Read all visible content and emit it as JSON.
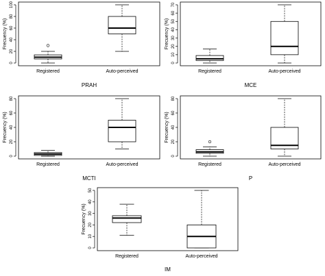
{
  "chart_data": [
    {
      "type": "box",
      "title": "PRAH",
      "ylabel": "Frecuency (%)",
      "ylim": [
        0,
        100
      ],
      "yticks": [
        0,
        20,
        40,
        60,
        80,
        100
      ],
      "categories": [
        "Registered",
        "Auto-perceived"
      ],
      "boxes": [
        {
          "min": 0,
          "q1": 7,
          "median": 10,
          "q3": 14,
          "max": 20,
          "outliers": [
            30
          ]
        },
        {
          "min": 20,
          "q1": 50,
          "median": 60,
          "q3": 80,
          "max": 100,
          "outliers": []
        }
      ]
    },
    {
      "type": "box",
      "title": "MCE",
      "ylabel": "Frecuency (%)",
      "ylim": [
        0,
        70
      ],
      "yticks": [
        0,
        10,
        20,
        30,
        40,
        50,
        60,
        70
      ],
      "categories": [
        "Registered",
        "Auto-perceived"
      ],
      "boxes": [
        {
          "min": 0,
          "q1": 3,
          "median": 5,
          "q3": 9,
          "max": 17,
          "outliers": []
        },
        {
          "min": 0,
          "q1": 10,
          "median": 20,
          "q3": 50,
          "max": 70,
          "outliers": []
        }
      ]
    },
    {
      "type": "box",
      "title": "MCTI",
      "ylabel": "Frecuency (%)",
      "ylim": [
        0,
        80
      ],
      "yticks": [
        0,
        20,
        40,
        60,
        80
      ],
      "categories": [
        "Registered",
        "Auto-perceived"
      ],
      "boxes": [
        {
          "min": 0,
          "q1": 1,
          "median": 3,
          "q3": 5,
          "max": 8,
          "outliers": []
        },
        {
          "min": 10,
          "q1": 20,
          "median": 40,
          "q3": 50,
          "max": 80,
          "outliers": []
        }
      ]
    },
    {
      "type": "box",
      "title": "P",
      "ylabel": "Frecuency (%)",
      "ylim": [
        0,
        80
      ],
      "yticks": [
        0,
        20,
        40,
        60,
        80
      ],
      "categories": [
        "Registered",
        "Auto-perceived"
      ],
      "boxes": [
        {
          "min": 0,
          "q1": 4,
          "median": 6,
          "q3": 9,
          "max": 13,
          "outliers": [
            20
          ]
        },
        {
          "min": 0,
          "q1": 10,
          "median": 15,
          "q3": 40,
          "max": 80,
          "outliers": []
        }
      ]
    },
    {
      "type": "box",
      "title": "IM",
      "ylabel": "Frecuency (%)",
      "ylim": [
        0,
        50
      ],
      "yticks": [
        0,
        10,
        20,
        30,
        40,
        50
      ],
      "categories": [
        "Registered",
        "Auto-perceived"
      ],
      "boxes": [
        {
          "min": 11,
          "q1": 22,
          "median": 26,
          "q3": 28,
          "max": 38,
          "outliers": []
        },
        {
          "min": 0,
          "q1": 0,
          "median": 10,
          "q3": 20,
          "max": 50,
          "outliers": []
        }
      ]
    }
  ]
}
